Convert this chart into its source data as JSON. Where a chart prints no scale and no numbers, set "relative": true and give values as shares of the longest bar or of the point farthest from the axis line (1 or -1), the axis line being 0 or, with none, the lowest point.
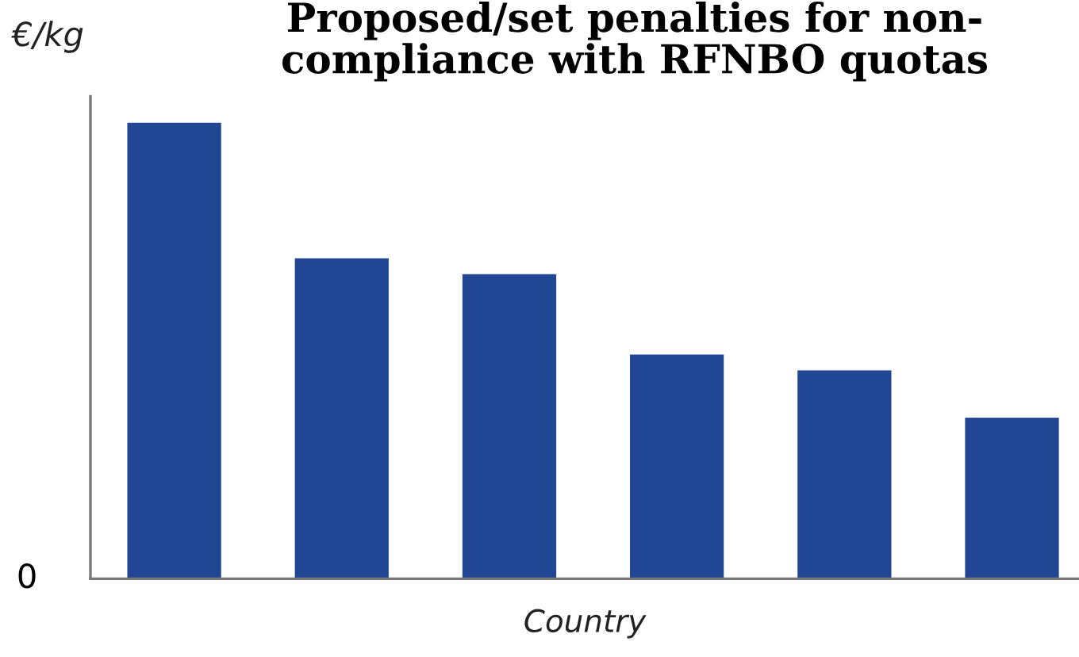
{
  "chart_data": {
    "type": "bar",
    "title": "Proposed/set penalties for non-\ncompliance with RFNBO quotas",
    "ylabel": "€/kg",
    "xlabel": "Country",
    "categories": [
      null,
      null,
      null,
      null,
      null,
      null
    ],
    "values": [
      1,
      0.703,
      0.668,
      0.492,
      0.457,
      0.353
    ],
    "color": "#214694",
    "relative": true,
    "annotations": [
      "0"
    ],
    "grid": false,
    "legend": false
  }
}
